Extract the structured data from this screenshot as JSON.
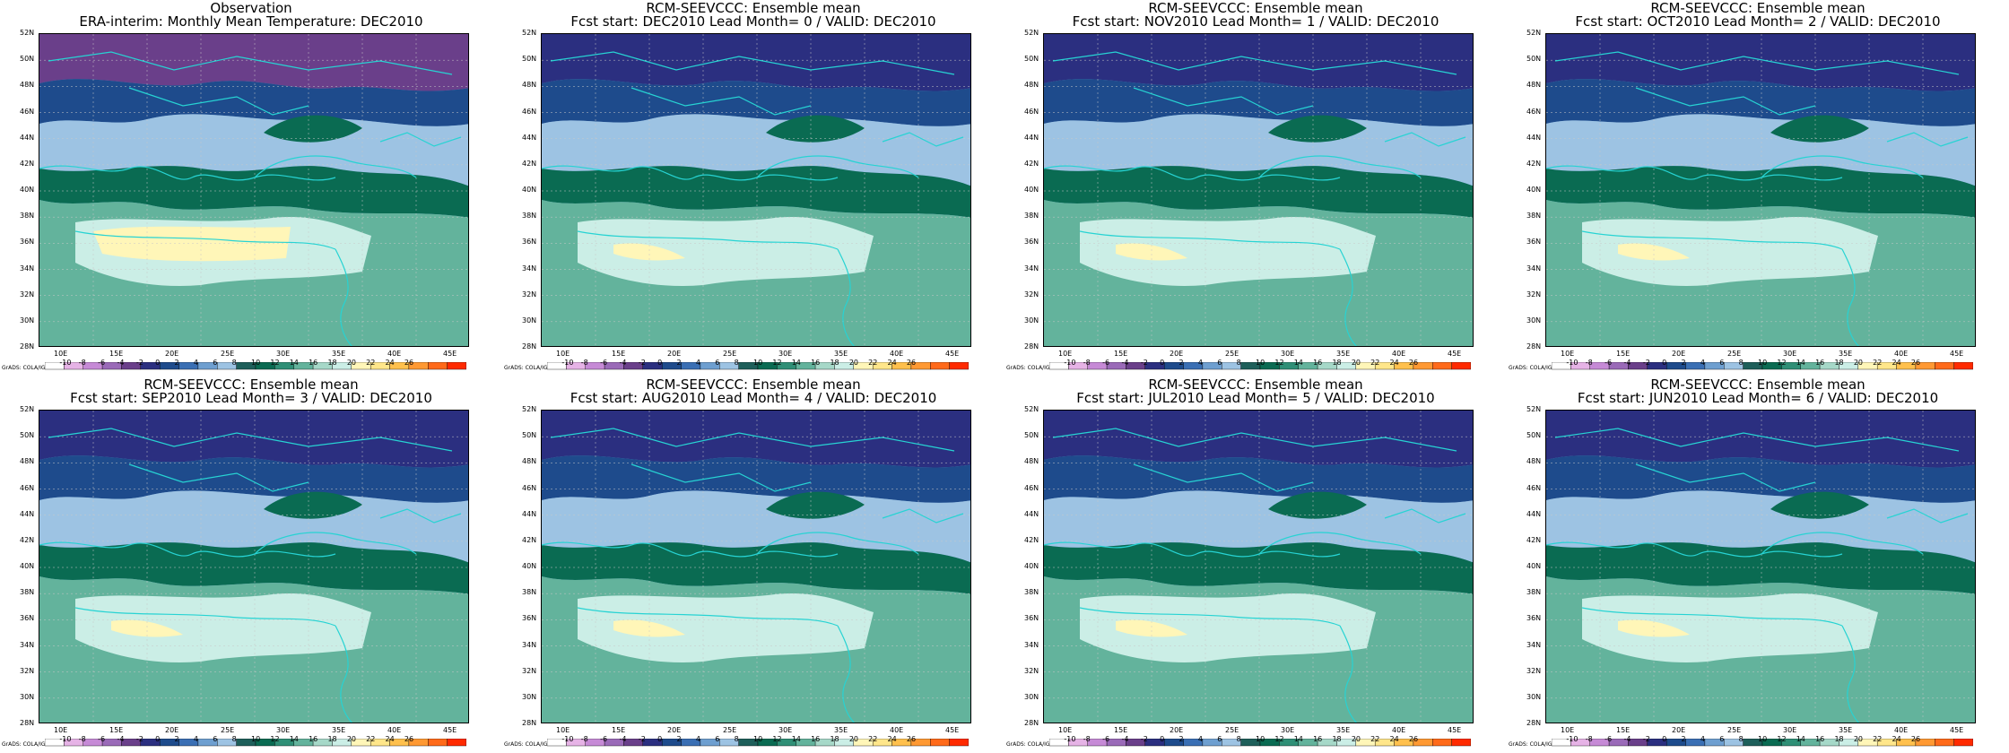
{
  "figure": {
    "lat_labels": [
      "52N",
      "50N",
      "48N",
      "46N",
      "44N",
      "42N",
      "40N",
      "38N",
      "36N",
      "34N",
      "32N",
      "30N",
      "28N"
    ],
    "lon_labels": [
      "10E",
      "15E",
      "20E",
      "25E",
      "30E",
      "35E",
      "40E",
      "45E"
    ],
    "colorbar_labels": [
      "-10",
      "-8",
      "-6",
      "-4",
      "-2",
      "0",
      "2",
      "4",
      "6",
      "8",
      "10",
      "12",
      "14",
      "16",
      "18",
      "20",
      "22",
      "24",
      "26"
    ],
    "colorbar_colors": [
      "#ffffff",
      "#e6b3e6",
      "#c68ad6",
      "#9a6ab8",
      "#6a3f8a",
      "#2b2f80",
      "#1e4b8c",
      "#3a6fb4",
      "#6e9fd0",
      "#9dc3e3",
      "#1e5f5a",
      "#0a6b52",
      "#2f8f76",
      "#63b39c",
      "#a6d8c8",
      "#cbeee6",
      "#fff6b8",
      "#ffe68a",
      "#ffc04d",
      "#ff9933",
      "#ff6a1a",
      "#ff2a00"
    ],
    "credit": "GrADS: COLA/IGES"
  },
  "panels": [
    {
      "line1": "Observation",
      "line2": "ERA-interim:  Monthly Mean Temperature: DEC2010"
    },
    {
      "line1": "RCM-SEEVCCC: Ensemble mean",
      "line2": "Fcst start: DEC2010   Lead Month= 0 / VALID: DEC2010"
    },
    {
      "line1": "RCM-SEEVCCC: Ensemble mean",
      "line2": "Fcst start: NOV2010   Lead Month= 1 / VALID: DEC2010"
    },
    {
      "line1": "RCM-SEEVCCC: Ensemble mean",
      "line2": "Fcst start: OCT2010   Lead Month= 2 / VALID: DEC2010"
    },
    {
      "line1": "RCM-SEEVCCC: Ensemble mean",
      "line2": "Fcst start: SEP2010   Lead Month= 3 / VALID: DEC2010"
    },
    {
      "line1": "RCM-SEEVCCC: Ensemble mean",
      "line2": "Fcst start: AUG2010   Lead Month= 4 / VALID: DEC2010"
    },
    {
      "line1": "RCM-SEEVCCC: Ensemble mean",
      "line2": "Fcst start: JUL2010   Lead Month= 5 / VALID: DEC2010"
    },
    {
      "line1": "RCM-SEEVCCC: Ensemble mean",
      "line2": "Fcst start: JUN2010   Lead Month= 6 / VALID: DEC2010"
    }
  ]
}
